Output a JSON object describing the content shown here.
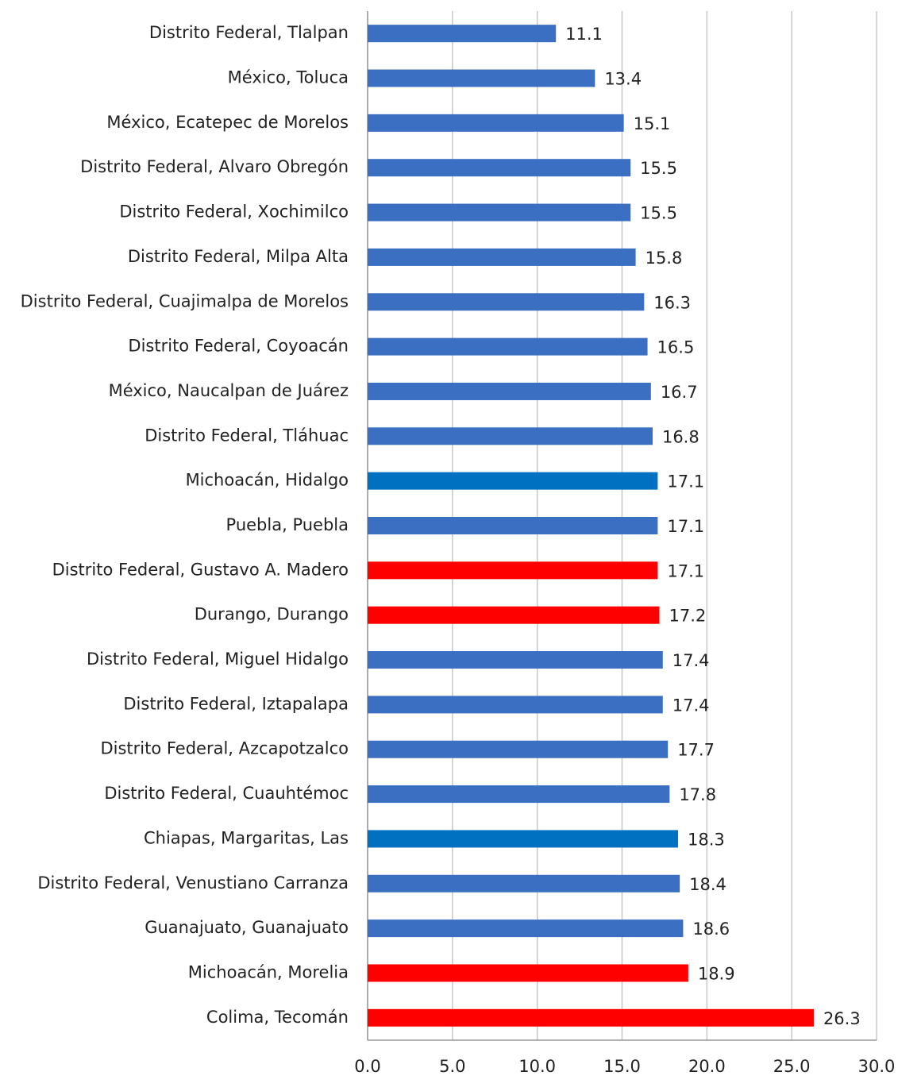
{
  "chart_data": {
    "type": "hbar",
    "categories": [
      "Distrito Federal, Tlalpan",
      "México, Toluca",
      "México, Ecatepec de Morelos",
      "Distrito Federal, Alvaro Obregón",
      "Distrito Federal, Xochimilco",
      "Distrito Federal, Milpa Alta",
      "Distrito Federal, Cuajimalpa de Morelos",
      "Distrito Federal, Coyoacán",
      "México, Naucalpan de Juárez",
      "Distrito Federal, Tláhuac",
      "Michoacán, Hidalgo",
      "Puebla, Puebla",
      "Distrito Federal, Gustavo A. Madero",
      "Durango, Durango",
      "Distrito Federal, Miguel Hidalgo",
      "Distrito Federal, Iztapalapa",
      "Distrito Federal, Azcapotzalco",
      "Distrito Federal, Cuauhtémoc",
      "Chiapas, Margaritas, Las",
      "Distrito Federal, Venustiano Carranza",
      "Guanajuato, Guanajuato",
      "Michoacán, Morelia",
      "Colima, Tecomán"
    ],
    "values": [
      11.1,
      13.4,
      15.1,
      15.5,
      15.5,
      15.8,
      16.3,
      16.5,
      16.7,
      16.8,
      17.1,
      17.1,
      17.1,
      17.2,
      17.4,
      17.4,
      17.7,
      17.8,
      18.3,
      18.4,
      18.6,
      18.9,
      26.3
    ],
    "colors": [
      "#3b6fc2",
      "#3b6fc2",
      "#3b6fc2",
      "#3b6fc2",
      "#3b6fc2",
      "#3b6fc2",
      "#3b6fc2",
      "#3b6fc2",
      "#3b6fc2",
      "#3b6fc2",
      "#0070c0",
      "#3b6fc2",
      "#ff0000",
      "#ff0000",
      "#3b6fc2",
      "#3b6fc2",
      "#3b6fc2",
      "#3b6fc2",
      "#0070c0",
      "#3b6fc2",
      "#3b6fc2",
      "#ff0000",
      "#ff0000"
    ],
    "xlim": [
      0,
      30
    ],
    "xticks": [
      {
        "value": 0,
        "label": "0.0"
      },
      {
        "value": 5,
        "label": "5.0"
      },
      {
        "value": 10,
        "label": "10.0"
      },
      {
        "value": 15,
        "label": "15.0"
      },
      {
        "value": 20,
        "label": "20.0"
      },
      {
        "value": 25,
        "label": "25.0"
      },
      {
        "value": 30,
        "label": "30.0"
      }
    ],
    "grid": true
  }
}
